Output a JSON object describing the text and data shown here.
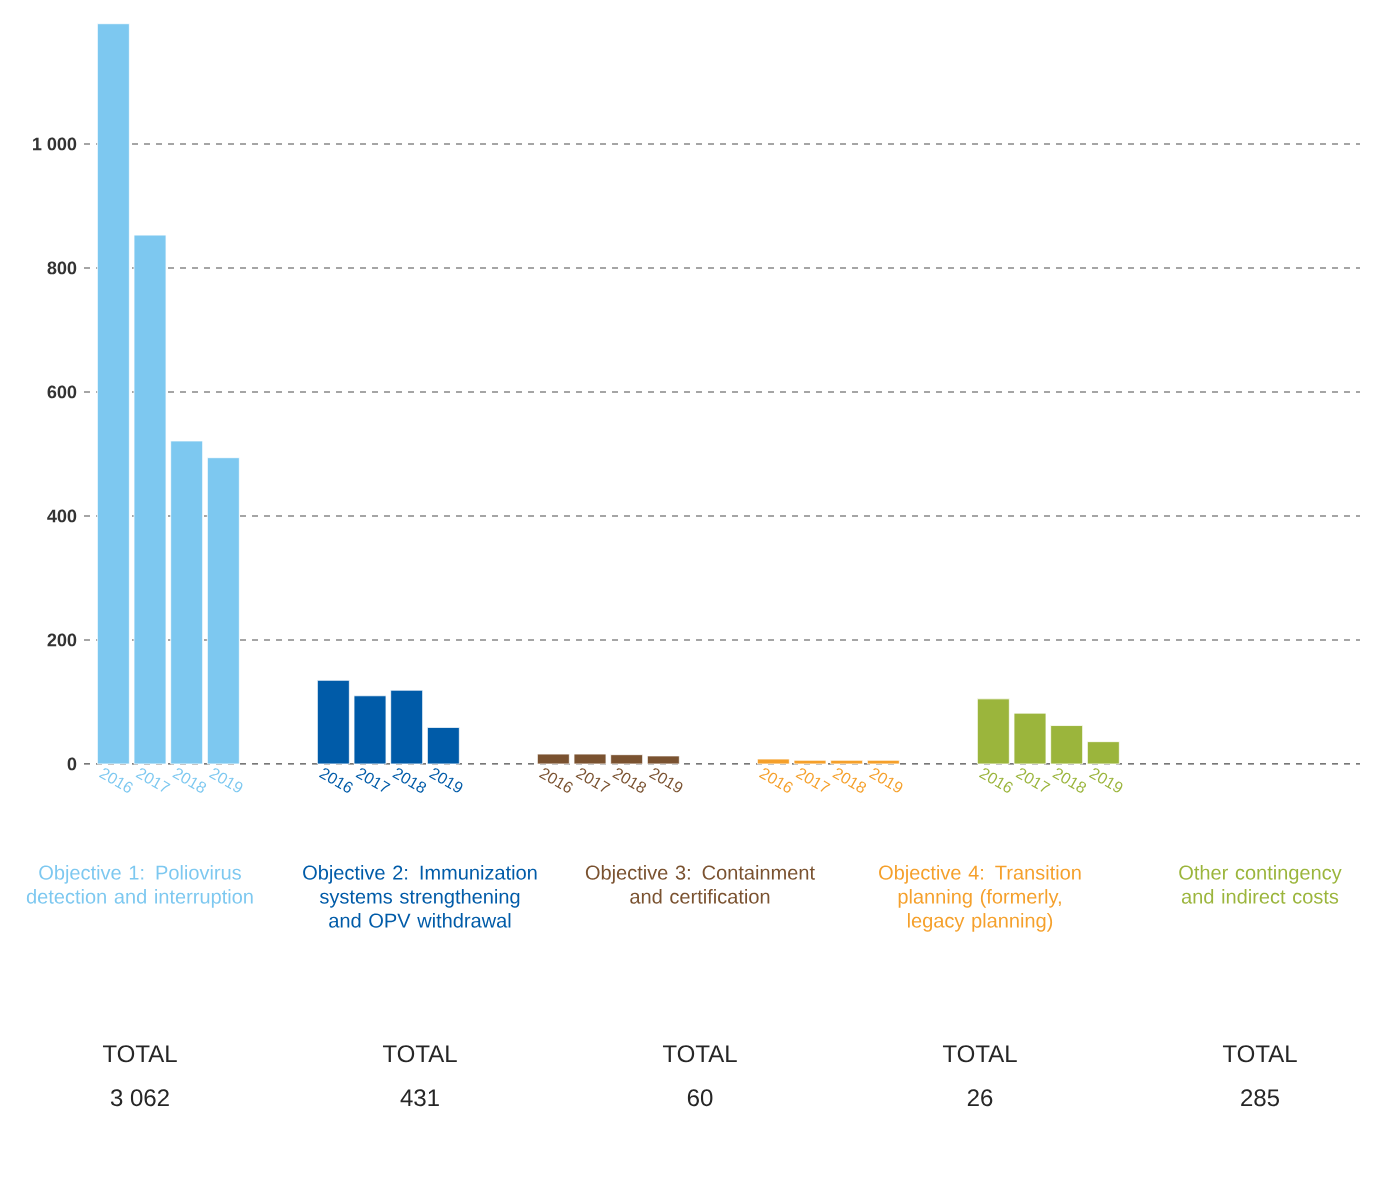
{
  "chart_data": {
    "type": "bar",
    "categories": [
      "2016",
      "2017",
      "2018",
      "2019",
      null,
      null,
      "2016",
      "2017",
      "2018",
      "2019",
      null,
      null,
      "2016",
      "2017",
      "2018",
      "2019",
      null,
      null,
      "2016",
      "2017",
      "2018",
      "2019",
      null,
      null,
      "2016",
      "2017",
      "2018",
      "2019"
    ],
    "series": [
      {
        "color": "#7dc8f0",
        "values": [
          1194,
          853,
          521,
          494,
          null,
          null,
          null,
          null,
          null,
          null,
          null,
          null,
          null,
          null,
          null,
          null,
          null,
          null,
          null,
          null,
          null,
          null,
          null,
          null,
          null,
          null,
          null,
          null
        ]
      },
      {
        "color": "#005ba8",
        "values": [
          null,
          null,
          null,
          null,
          null,
          null,
          135,
          110,
          119,
          59,
          null,
          null,
          null,
          null,
          null,
          null,
          null,
          null,
          null,
          null,
          null,
          null,
          null,
          null,
          null,
          null,
          null,
          null
        ]
      },
      {
        "color": "#7a5230",
        "values": [
          null,
          null,
          null,
          null,
          null,
          null,
          null,
          null,
          null,
          null,
          null,
          null,
          16,
          16,
          15,
          13,
          null,
          null,
          null,
          null,
          null,
          null,
          null,
          null,
          null,
          null,
          null,
          null
        ]
      },
      {
        "color": "#f5a02b",
        "values": [
          null,
          null,
          null,
          null,
          null,
          null,
          null,
          null,
          null,
          null,
          null,
          null,
          null,
          null,
          null,
          null,
          null,
          null,
          8,
          6,
          6,
          6,
          null,
          null,
          null,
          null,
          null,
          null
        ]
      },
      {
        "color": "#9bb53c",
        "values": [
          null,
          null,
          null,
          null,
          null,
          null,
          null,
          null,
          null,
          null,
          null,
          null,
          null,
          null,
          null,
          null,
          null,
          null,
          null,
          null,
          null,
          null,
          null,
          null,
          105,
          82,
          62,
          36
        ]
      }
    ],
    "ylim": [
      0,
      1200
    ],
    "yticks": [
      0,
      200,
      400,
      600,
      800,
      {
        "value": 1000,
        "label": "1 000"
      }
    ],
    "grid": "y",
    "annotations": [
      "Objective 1: Poliovirus detection and interruption",
      "TOTAL",
      "3 062",
      "Objective 2: Immunization systems strengthening and OPV withdrawal",
      "TOTAL",
      "431",
      "Objective 3: Containment and certification",
      "TOTAL",
      "60",
      "Objective 4: Transition planning (formerly, legacy planning)",
      "TOTAL",
      "26",
      "Other contingency and indirect costs",
      "TOTAL",
      "285"
    ]
  }
}
